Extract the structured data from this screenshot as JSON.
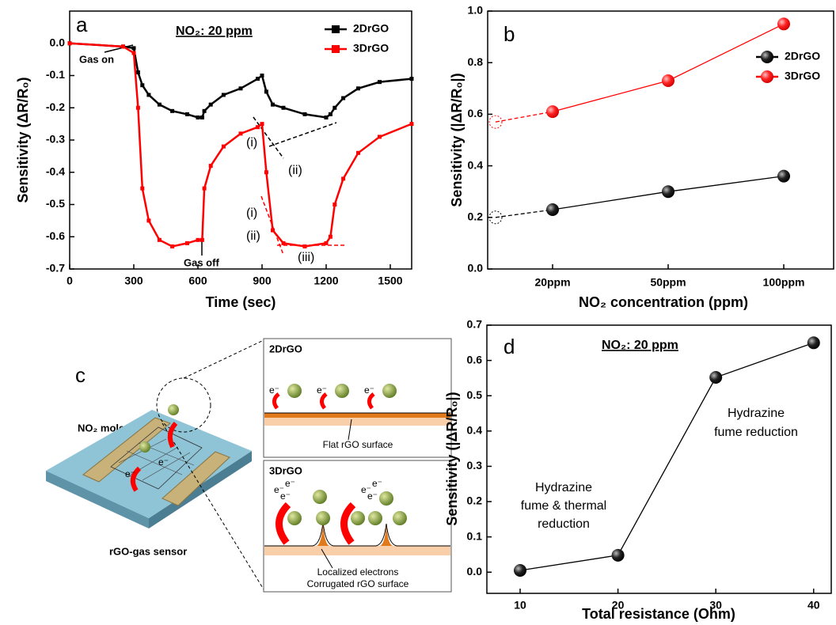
{
  "chart_data": [
    {
      "type": "line",
      "panel": "a",
      "annotations": [
        "NO₂: 20 ppm",
        "Gas on",
        "Gas off",
        "(i)",
        "(ii)",
        "(i)",
        "(ii)",
        "(iii)"
      ],
      "xlabel": "Time (sec)",
      "ylabel": "Sensitivity (ΔR/R₀)",
      "x": [
        0,
        250,
        300,
        320,
        340,
        370,
        420,
        480,
        550,
        600,
        620,
        630,
        660,
        720,
        800,
        880,
        900,
        920,
        950,
        1000,
        1100,
        1200,
        1220,
        1240,
        1280,
        1350,
        1450,
        1600
      ],
      "series": [
        {
          "name": "2DrGO",
          "color": "#000000",
          "marker": "square",
          "values": [
            0,
            -0.01,
            -0.015,
            -0.09,
            -0.13,
            -0.16,
            -0.19,
            -0.21,
            -0.22,
            -0.23,
            -0.23,
            -0.21,
            -0.19,
            -0.16,
            -0.14,
            -0.11,
            -0.1,
            -0.15,
            -0.19,
            -0.2,
            -0.22,
            -0.23,
            -0.22,
            -0.2,
            -0.17,
            -0.14,
            -0.12,
            -0.11
          ]
        },
        {
          "name": "3DrGO",
          "color": "#ff0000",
          "marker": "square",
          "values": [
            0,
            -0.01,
            -0.03,
            -0.2,
            -0.45,
            -0.55,
            -0.61,
            -0.63,
            -0.62,
            -0.61,
            -0.61,
            -0.45,
            -0.38,
            -0.32,
            -0.28,
            -0.26,
            -0.25,
            -0.4,
            -0.58,
            -0.62,
            -0.63,
            -0.62,
            -0.6,
            -0.5,
            -0.42,
            -0.34,
            -0.29,
            -0.25
          ]
        }
      ],
      "xlim": [
        0,
        1600
      ],
      "xticks": [
        0,
        300,
        600,
        900,
        1200,
        1500
      ],
      "ylim": [
        -0.7,
        0.1
      ],
      "yticks": [
        {
          "value": 0,
          "label": "0.0"
        },
        {
          "value": -0.1,
          "label": "-0.1"
        },
        {
          "value": -0.2,
          "label": "-0.2"
        },
        {
          "value": -0.3,
          "label": "-0.3"
        },
        {
          "value": -0.4,
          "label": "-0.4"
        },
        {
          "value": -0.5,
          "label": "-0.5"
        },
        {
          "value": -0.6,
          "label": "-0.6"
        },
        {
          "value": -0.7,
          "label": "-0.7"
        }
      ],
      "legend": "upper right"
    },
    {
      "type": "line",
      "panel": "b",
      "xlabel": "NO₂ concentration (ppm)",
      "ylabel": "Sensitivity (|ΔR/R₀|)",
      "categories": [
        "20ppm",
        "50ppm",
        "100ppm"
      ],
      "series": [
        {
          "name": "2DrGO",
          "color": "#000000",
          "marker": "circle",
          "intercept": 0.2,
          "values": [
            0.23,
            0.3,
            0.36
          ]
        },
        {
          "name": "3DrGO",
          "color": "#ff0000",
          "marker": "circle",
          "intercept": 0.57,
          "values": [
            0.61,
            0.73,
            0.95
          ]
        }
      ],
      "ylim": [
        0,
        1.0
      ],
      "yticks": [
        {
          "value": 0,
          "label": "0.0"
        },
        {
          "value": 0.2,
          "label": "0.2"
        },
        {
          "value": 0.4,
          "label": "0.4"
        },
        {
          "value": 0.6,
          "label": "0.6"
        },
        {
          "value": 0.8,
          "label": "0.8"
        },
        {
          "value": 1.0,
          "label": "1.0"
        }
      ],
      "legend": "right"
    },
    {
      "type": "line",
      "panel": "d",
      "annotations": [
        "NO₂: 20 ppm",
        "Hydrazine",
        "fume reduction",
        "Hydrazine",
        "fume & thermal",
        "reduction"
      ],
      "xlabel": "Total resistance (Ohm)",
      "ylabel": "Sensitivity (|ΔR/R₀|)",
      "x": [
        10,
        20,
        30,
        40
      ],
      "values": [
        0.005,
        0.048,
        0.552,
        0.65
      ],
      "color": "#000000",
      "marker": "circle",
      "xlim": [
        6.6,
        41.8
      ],
      "xticks": [
        10,
        20,
        30,
        40
      ],
      "ylim": [
        -0.06,
        0.7
      ],
      "yticks": [
        {
          "value": 0,
          "label": "0.0"
        },
        {
          "value": 0.1,
          "label": "0.1"
        },
        {
          "value": 0.2,
          "label": "0.2"
        },
        {
          "value": 0.3,
          "label": "0.3"
        },
        {
          "value": 0.4,
          "label": "0.4"
        },
        {
          "value": 0.5,
          "label": "0.5"
        },
        {
          "value": 0.6,
          "label": "0.6"
        },
        {
          "value": 0.7,
          "label": "0.7"
        }
      ]
    }
  ],
  "diagram": {
    "label": "c",
    "molecules": "NO₂ molecules",
    "sensor": "rGO-gas sensor",
    "electron": "e⁻",
    "panels": [
      {
        "title": "2DrGO",
        "captions": [
          "Flat rGO surface"
        ]
      },
      {
        "title": "3DrGO",
        "captions": [
          "Localized electrons",
          "Corrugated rGO surface"
        ]
      }
    ]
  }
}
